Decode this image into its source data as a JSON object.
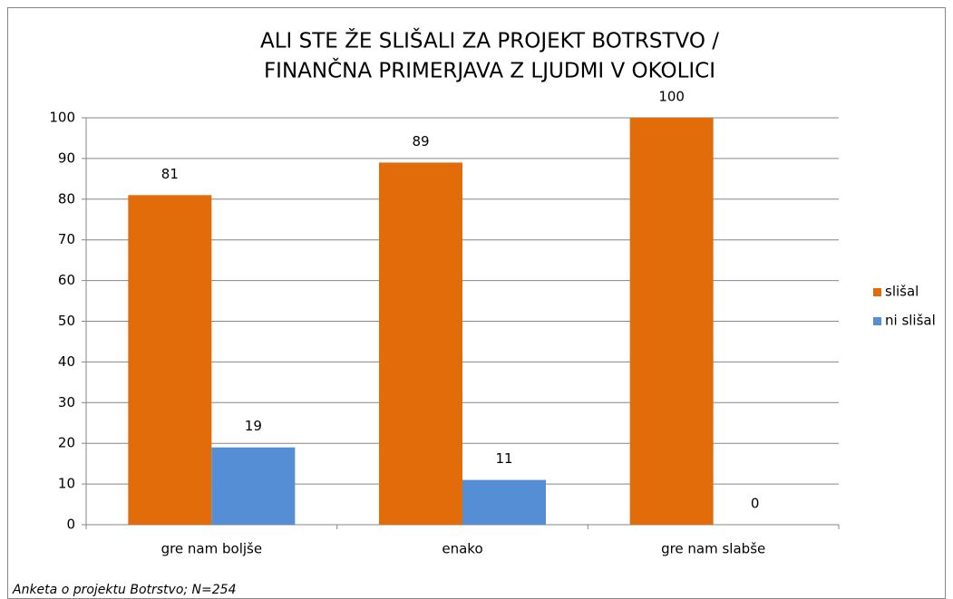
{
  "chart_data": {
    "type": "bar",
    "title": [
      "ALI STE ŽE SLIŠALI ZA PROJEKT BOTRSTVO /",
      "FINANČNA PRIMERJAVA Z LJUDMI V OKOLICI"
    ],
    "categories": [
      "gre nam boljše",
      "enako",
      "gre nam slabše"
    ],
    "series": [
      {
        "name": "slišal",
        "color": "#e36c0a",
        "values": [
          81,
          89,
          100
        ]
      },
      {
        "name": "ni slišal",
        "color": "#558ed5",
        "values": [
          19,
          11,
          0
        ]
      }
    ],
    "ylim": [
      0,
      100
    ],
    "yticks": [
      0,
      10,
      20,
      30,
      40,
      50,
      60,
      70,
      80,
      90,
      100
    ],
    "grid": true,
    "legend": "right",
    "footnote": "Anketa o projektu Botrstvo; N=254"
  }
}
